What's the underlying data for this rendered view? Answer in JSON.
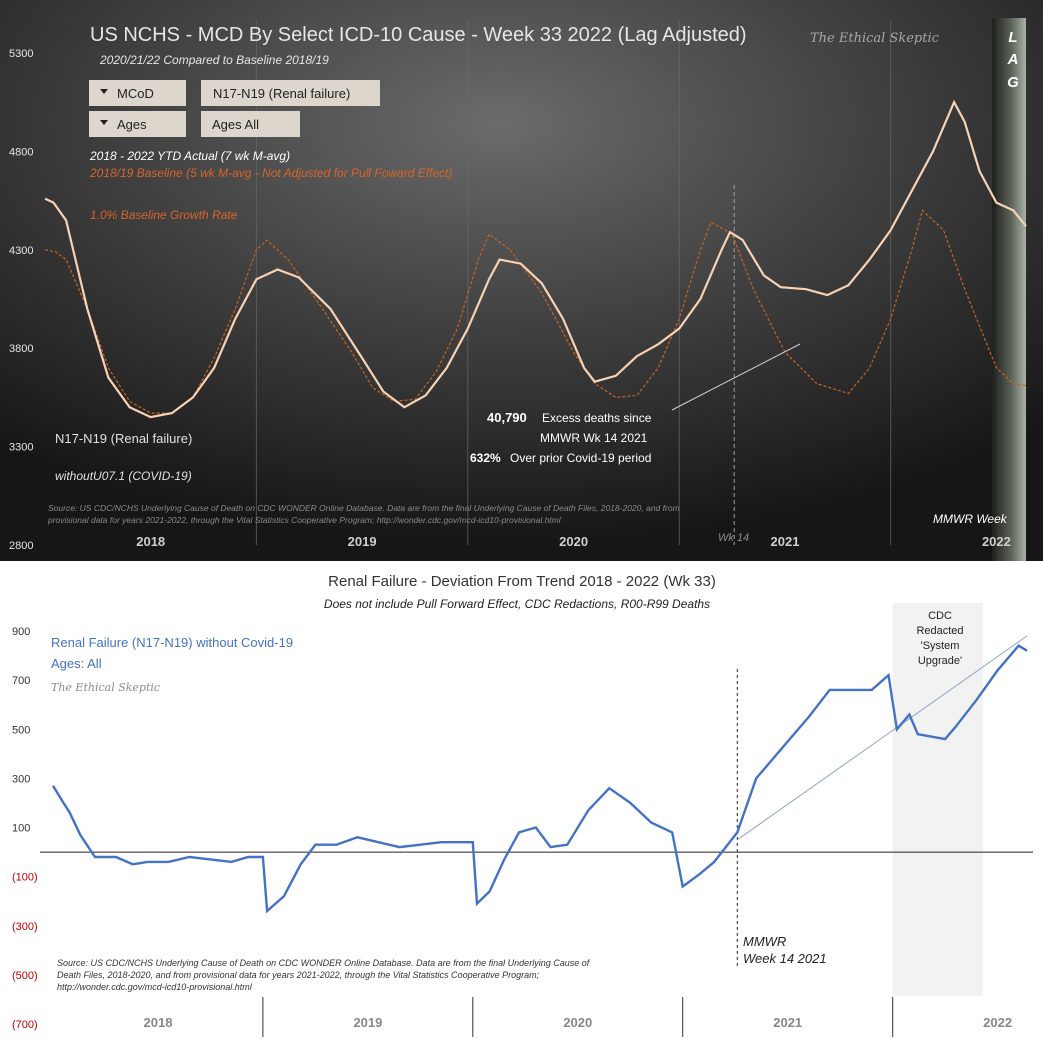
{
  "colors": {
    "actual_line": "#f8d2b4",
    "baseline_line": "#c86420",
    "baseline_text": "#d8652a",
    "deviation_line": "#4472c4",
    "red_tick": "#c00000"
  },
  "top_chart": {
    "title": "US NCHS - MCD By Select ICD-10 Cause - Week 33 2022 (Lag Adjusted)",
    "subtitle": "2020/21/22  Compared to Baseline 2018/19",
    "watermark": "The Ethical Skeptic",
    "lag_letters": [
      "L",
      "A",
      "G"
    ],
    "filters": [
      {
        "label": "MCoD",
        "value": "N17-N19 (Renal failure)"
      },
      {
        "label": "Ages",
        "value": "Ages All"
      }
    ],
    "legend": {
      "actual": "2018 - 2022 YTD Actual (7 wk M-avg)",
      "baseline": "2018/19 Baseline (5 wk M-avg - Not Adjusted for Pull Foward Effect)",
      "growth": "1.0% Baseline Growth Rate"
    },
    "cause_label": "N17-N19 (Renal failure)",
    "without_label": "withoutU07.1 (COVID-19)",
    "excess": {
      "value": "40,790",
      "text": "Excess deaths since",
      "text2": "MMWR  Wk 14 2021",
      "pct": "632%",
      "pct_text": "Over prior Covid-19 period"
    },
    "source": "Source: US CDC/NCHS Underlying Cause of Death on CDC WONDER Online Database. Data are from the final Underlying Cause of Death Files, 2018-2020, and from provisional data for years 2021-2022, through the Vital Statistics Cooperative Program; http://wonder.cdc.gov/mcd-icd10-provisional.html",
    "mmwr_label": "MMWR Week",
    "wk14_label": "Wk 14",
    "years": [
      "2018",
      "2019",
      "2020",
      "2021",
      "2022"
    ],
    "y_ticks": [
      5300,
      4800,
      4300,
      3800,
      3300,
      2800
    ]
  },
  "bottom_chart": {
    "title": "Renal Failure - Deviation  From Trend  2018 - 2022 (Wk 33)",
    "subtitle": "Does not include Pull Forward Effect, CDC Redactions, R00-R99 Deaths",
    "series_label": "Renal Failure (N17-N19) without Covid-19",
    "ages_label": "Ages: All",
    "watermark": "The Ethical Skeptic",
    "redacted_label": [
      "CDC",
      "Redacted",
      "'System",
      "Upgrade'"
    ],
    "mmwr_label": [
      "MMWR",
      "Week 14 2021"
    ],
    "source": [
      "Source: US CDC/NCHS Underlying Cause of Death on CDC WONDER Online Database. Data are from the final Underlying Cause of",
      "Death Files, 2018-2020, and from provisional data for years 2021-2022, through the Vital Statistics Cooperative Program;",
      "http://wonder.cdc.gov/mcd-icd10-provisional.html"
    ],
    "years": [
      "2018",
      "2019",
      "2020",
      "2021",
      "2022"
    ],
    "y_ticks": [
      "900",
      "700",
      "500",
      "300",
      "100",
      "(100)",
      "(300)",
      "(500)",
      "(700)"
    ]
  },
  "chart_data": [
    {
      "type": "line",
      "title": "US NCHS - MCD By Select ICD-10 Cause - Week 33 2022 (Lag Adjusted)",
      "xlabel": "MMWR Week",
      "ylabel": "",
      "ylim": [
        2800,
        5300
      ],
      "x_range": [
        2018.0,
        2022.64
      ],
      "series": [
        {
          "name": "2018 - 2022 YTD Actual (7 wk M-avg)",
          "points": [
            [
              2018.0,
              4560
            ],
            [
              2018.04,
              4540
            ],
            [
              2018.1,
              4450
            ],
            [
              2018.2,
              4000
            ],
            [
              2018.3,
              3650
            ],
            [
              2018.4,
              3500
            ],
            [
              2018.5,
              3450
            ],
            [
              2018.6,
              3470
            ],
            [
              2018.7,
              3550
            ],
            [
              2018.8,
              3700
            ],
            [
              2018.9,
              3950
            ],
            [
              2019.0,
              4150
            ],
            [
              2019.1,
              4200
            ],
            [
              2019.2,
              4160
            ],
            [
              2019.35,
              4000
            ],
            [
              2019.5,
              3750
            ],
            [
              2019.6,
              3580
            ],
            [
              2019.7,
              3500
            ],
            [
              2019.8,
              3560
            ],
            [
              2019.9,
              3700
            ],
            [
              2020.0,
              3900
            ],
            [
              2020.1,
              4150
            ],
            [
              2020.15,
              4250
            ],
            [
              2020.25,
              4230
            ],
            [
              2020.35,
              4130
            ],
            [
              2020.45,
              3950
            ],
            [
              2020.55,
              3700
            ],
            [
              2020.6,
              3630
            ],
            [
              2020.7,
              3660
            ],
            [
              2020.8,
              3760
            ],
            [
              2020.9,
              3820
            ],
            [
              2021.0,
              3900
            ],
            [
              2021.1,
              4050
            ],
            [
              2021.2,
              4300
            ],
            [
              2021.24,
              4390
            ],
            [
              2021.3,
              4350
            ],
            [
              2021.4,
              4170
            ],
            [
              2021.48,
              4110
            ],
            [
              2021.6,
              4100
            ],
            [
              2021.7,
              4070
            ],
            [
              2021.8,
              4120
            ],
            [
              2021.9,
              4250
            ],
            [
              2022.0,
              4400
            ],
            [
              2022.1,
              4600
            ],
            [
              2022.2,
              4800
            ],
            [
              2022.3,
              5050
            ],
            [
              2022.35,
              4950
            ],
            [
              2022.42,
              4700
            ],
            [
              2022.5,
              4540
            ],
            [
              2022.58,
              4500
            ],
            [
              2022.64,
              4420
            ]
          ]
        },
        {
          "name": "2018/19 Baseline (5 wk M-avg - Not Adjusted for Pull Foward Effect)",
          "points": [
            [
              2018.0,
              4300
            ],
            [
              2018.05,
              4290
            ],
            [
              2018.1,
              4250
            ],
            [
              2018.2,
              4000
            ],
            [
              2018.3,
              3700
            ],
            [
              2018.4,
              3530
            ],
            [
              2018.5,
              3470
            ],
            [
              2018.6,
              3470
            ],
            [
              2018.7,
              3550
            ],
            [
              2018.8,
              3750
            ],
            [
              2018.9,
              4000
            ],
            [
              2019.0,
              4300
            ],
            [
              2019.05,
              4350
            ],
            [
              2019.15,
              4250
            ],
            [
              2019.3,
              4020
            ],
            [
              2019.45,
              3780
            ],
            [
              2019.55,
              3600
            ],
            [
              2019.65,
              3530
            ],
            [
              2019.75,
              3540
            ],
            [
              2019.85,
              3680
            ],
            [
              2019.95,
              3900
            ],
            [
              2020.05,
              4250
            ],
            [
              2020.1,
              4380
            ],
            [
              2020.2,
              4300
            ],
            [
              2020.35,
              4080
            ],
            [
              2020.5,
              3780
            ],
            [
              2020.6,
              3620
            ],
            [
              2020.7,
              3550
            ],
            [
              2020.8,
              3560
            ],
            [
              2020.9,
              3700
            ],
            [
              2021.0,
              3950
            ],
            [
              2021.1,
              4300
            ],
            [
              2021.15,
              4440
            ],
            [
              2021.25,
              4380
            ],
            [
              2021.35,
              4100
            ],
            [
              2021.5,
              3780
            ],
            [
              2021.65,
              3620
            ],
            [
              2021.8,
              3570
            ],
            [
              2021.9,
              3700
            ],
            [
              2022.0,
              3950
            ],
            [
              2022.1,
              4300
            ],
            [
              2022.15,
              4500
            ],
            [
              2022.25,
              4400
            ],
            [
              2022.35,
              4100
            ],
            [
              2022.5,
              3700
            ],
            [
              2022.58,
              3620
            ],
            [
              2022.64,
              3610
            ]
          ]
        }
      ],
      "annotations": [
        "40,790 Excess deaths since MMWR Wk 14 2021",
        "632% Over prior Covid-19 period",
        "Wk 14"
      ]
    },
    {
      "type": "line",
      "title": "Renal Failure - Deviation  From Trend  2018 - 2022 (Wk 33)",
      "subtitle": "Does not include Pull Forward Effect, CDC Redactions, R00-R99 Deaths",
      "xlabel": "",
      "ylabel": "",
      "ylim": [
        -700,
        900
      ],
      "x_range": [
        2018.0,
        2022.64
      ],
      "series": [
        {
          "name": "Renal Failure (N17-N19) without Covid-19",
          "points": [
            [
              2018.0,
              270
            ],
            [
              2018.05,
              200
            ],
            [
              2018.08,
              160
            ],
            [
              2018.13,
              70
            ],
            [
              2018.2,
              -20
            ],
            [
              2018.3,
              -20
            ],
            [
              2018.38,
              -50
            ],
            [
              2018.45,
              -40
            ],
            [
              2018.55,
              -40
            ],
            [
              2018.65,
              -20
            ],
            [
              2018.75,
              -30
            ],
            [
              2018.85,
              -40
            ],
            [
              2018.93,
              -20
            ],
            [
              2019.0,
              -20
            ],
            [
              2019.02,
              -240
            ],
            [
              2019.1,
              -180
            ],
            [
              2019.18,
              -50
            ],
            [
              2019.25,
              30
            ],
            [
              2019.35,
              30
            ],
            [
              2019.45,
              60
            ],
            [
              2019.55,
              40
            ],
            [
              2019.65,
              20
            ],
            [
              2019.75,
              30
            ],
            [
              2019.85,
              40
            ],
            [
              2019.95,
              40
            ],
            [
              2020.0,
              40
            ],
            [
              2020.02,
              -210
            ],
            [
              2020.08,
              -160
            ],
            [
              2020.15,
              -30
            ],
            [
              2020.22,
              80
            ],
            [
              2020.3,
              100
            ],
            [
              2020.37,
              20
            ],
            [
              2020.45,
              30
            ],
            [
              2020.55,
              170
            ],
            [
              2020.65,
              260
            ],
            [
              2020.75,
              200
            ],
            [
              2020.85,
              120
            ],
            [
              2020.95,
              80
            ],
            [
              2021.0,
              -140
            ],
            [
              2021.08,
              -90
            ],
            [
              2021.15,
              -40
            ],
            [
              2021.26,
              80
            ],
            [
              2021.35,
              300
            ],
            [
              2021.5,
              450
            ],
            [
              2021.6,
              550
            ],
            [
              2021.7,
              660
            ],
            [
              2021.8,
              660
            ],
            [
              2021.9,
              660
            ],
            [
              2021.98,
              720
            ],
            [
              2022.02,
              500
            ],
            [
              2022.08,
              560
            ],
            [
              2022.12,
              480
            ],
            [
              2022.25,
              460
            ],
            [
              2022.3,
              510
            ],
            [
              2022.4,
              620
            ],
            [
              2022.5,
              740
            ],
            [
              2022.6,
              840
            ],
            [
              2022.64,
              820
            ]
          ]
        },
        {
          "name": "Trend",
          "points": [
            [
              2021.26,
              50
            ],
            [
              2022.64,
              880
            ]
          ]
        }
      ],
      "shaded_region": {
        "x_range": [
          2022.0,
          2022.43
        ],
        "label": "CDC Redacted 'System Upgrade'"
      },
      "reference_line": {
        "x": 2021.26,
        "label": "MMWR Week 14 2021"
      }
    }
  ]
}
